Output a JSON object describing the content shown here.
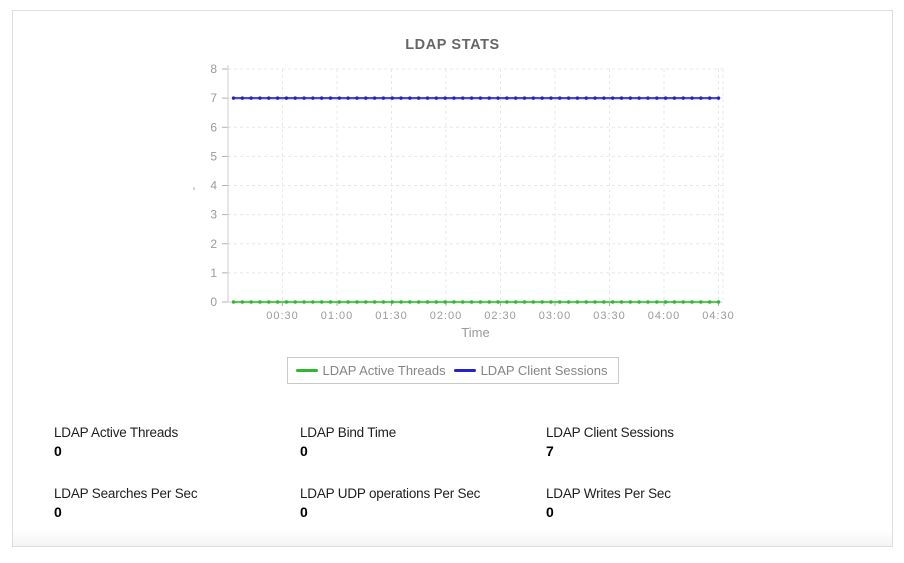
{
  "page": {
    "background": "#ffffff",
    "card_border": "#dddddd"
  },
  "chart_data": {
    "type": "line",
    "title": "LDAP STATS",
    "xlabel": "Time",
    "ylabel_mark": "-",
    "x_ticks": [
      "00:30",
      "01:00",
      "01:30",
      "02:00",
      "02:30",
      "03:00",
      "03:30",
      "04:00",
      "04:30"
    ],
    "y_ticks": [
      0,
      1,
      2,
      3,
      4,
      5,
      6,
      7,
      8
    ],
    "ylim": [
      0,
      8
    ],
    "grid": true,
    "legend_position": "bottom-center",
    "time_span": "points every 5 minutes from approx 00:05 to 04:30",
    "series": [
      {
        "name": "LDAP Active Threads",
        "constant": true,
        "value": 0,
        "values_at_ticks": [
          0,
          0,
          0,
          0,
          0,
          0,
          0,
          0,
          0
        ],
        "line_color": "#5ec75e",
        "marker_color": "#37b237",
        "legend_color": "#2eb82e"
      },
      {
        "name": "LDAP Client Sessions",
        "constant": true,
        "value": 7,
        "values_at_ticks": [
          7,
          7,
          7,
          7,
          7,
          7,
          7,
          7,
          7
        ],
        "line_color": "#4a4ad4",
        "marker_color": "#2424b8",
        "legend_color": "#2323cc"
      }
    ]
  },
  "stats": [
    {
      "label": "LDAP Active Threads",
      "value": "0"
    },
    {
      "label": "LDAP Bind Time",
      "value": "0"
    },
    {
      "label": "LDAP Client Sessions",
      "value": "7"
    },
    {
      "label": "LDAP Searches Per Sec",
      "value": "0"
    },
    {
      "label": "LDAP UDP operations Per Sec",
      "value": "0"
    },
    {
      "label": "LDAP Writes Per Sec",
      "value": "0"
    }
  ]
}
